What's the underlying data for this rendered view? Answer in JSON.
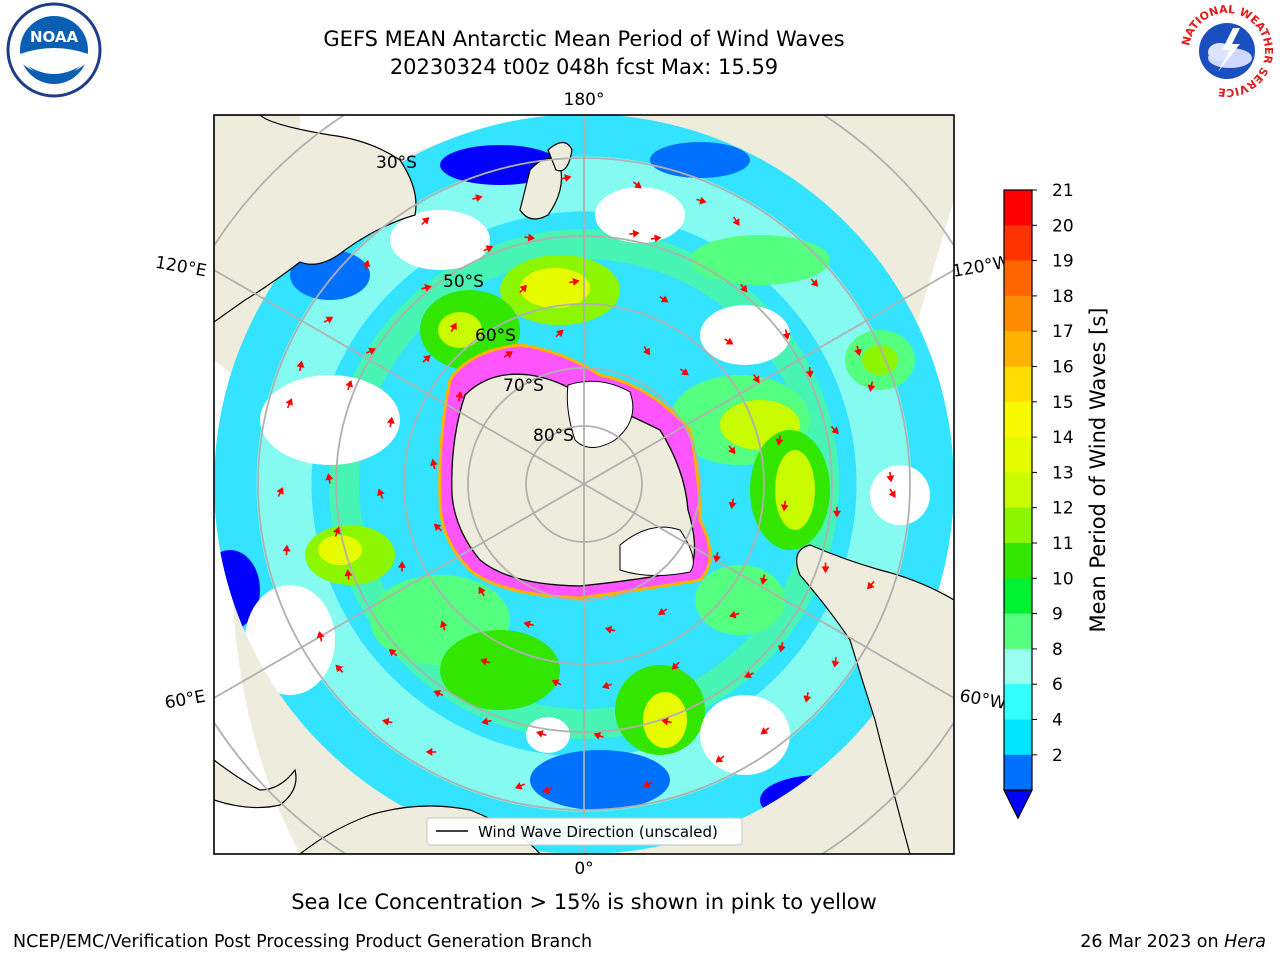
{
  "header": {
    "title_line1": "GEFS MEAN Antarctic Mean Period of Wind Waves",
    "title_line2": "20230324 t00z 048h fcst   Max: 15.59"
  },
  "logos": {
    "noaa": {
      "text": "NOAA",
      "icon": "noaa-logo-icon"
    },
    "nws": {
      "ring_text": "NATIONAL WEATHER SERVICE",
      "icon": "nws-logo-icon"
    }
  },
  "map": {
    "longitude_labels": {
      "top": "180°",
      "bottom": "0°",
      "left_upper": "120°E",
      "left_lower": "60°E",
      "right_upper": "120°W",
      "right_lower": "60°W"
    },
    "latitude_labels": [
      "30°S",
      "50°S",
      "60°S",
      "70°S",
      "80°S"
    ],
    "legend": "Wind Wave Direction (unscaled)",
    "colors": {
      "land": "#eeecdc",
      "ocean_fill": "#33e3ff",
      "sea_ice": "#ff55ff",
      "arrow": "#ff0000",
      "grid": "#b0b0b0"
    }
  },
  "colorbar": {
    "label": "Mean Period of Wind Waves [s]",
    "ticks": [
      "21",
      "20",
      "19",
      "18",
      "17",
      "16",
      "15",
      "14",
      "13",
      "12",
      "11",
      "10",
      "9",
      "8",
      "6",
      "4",
      "2"
    ],
    "colors_top_to_bottom": [
      "#ff0000",
      "#ff3300",
      "#ff6600",
      "#ff8c00",
      "#ffb300",
      "#ffdd00",
      "#f8f800",
      "#e6fa00",
      "#c8fa00",
      "#8cf500",
      "#32e600",
      "#00f032",
      "#55ff80",
      "#99ffee",
      "#33ffff",
      "#00e5ff",
      "#0070ff"
    ],
    "extend_color": "#0000ff"
  },
  "footer": {
    "note": "Sea Ice Concentration > 15% is shown in pink to yellow",
    "credit_left": "NCEP/EMC/Verification Post Processing Product Generation Branch",
    "credit_right_date": "26 Mar 2023 on ",
    "credit_right_machine": "Hera"
  }
}
